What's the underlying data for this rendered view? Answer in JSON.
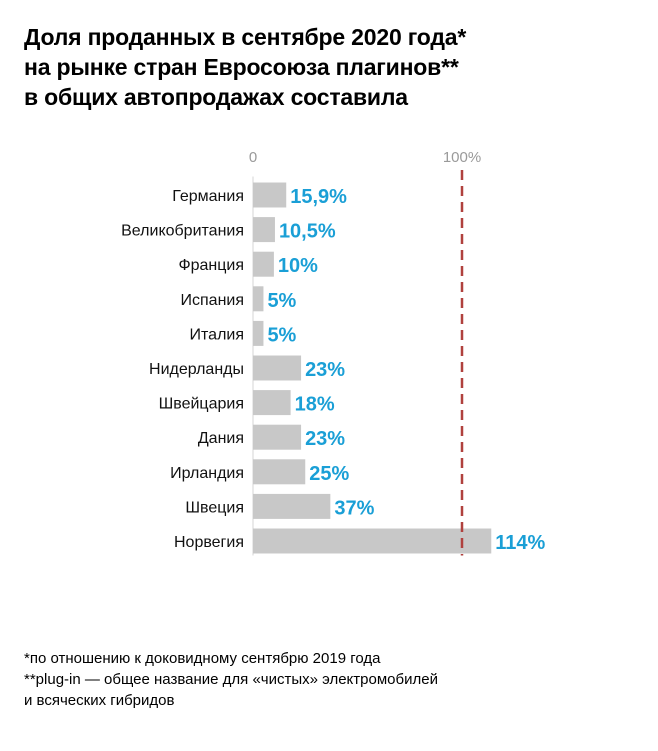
{
  "title_lines": [
    "Доля проданных в сентябре 2020 года*",
    "на рынке стран Евросоюза плагинов**",
    "в общих автопродажах составила"
  ],
  "footnotes": [
    "*по отношению к доковидному сентябрю 2019 года",
    "**plug-in — общее название для «чистых» электромобилей",
    "и всяческих гибридов"
  ],
  "colors": {
    "bar": "#c8c8c8",
    "value_label": "#1a9fd6",
    "reference_line": "#b0413e",
    "tick_label": "#9a9a9a"
  },
  "chart_data": {
    "type": "bar",
    "orientation": "horizontal",
    "categories": [
      "Германия",
      "Великобритания",
      "Франция",
      "Испания",
      "Италия",
      "Нидерланды",
      "Швейцария",
      "Дания",
      "Ирландия",
      "Швеция",
      "Норвегия"
    ],
    "values": [
      15.9,
      10.5,
      10,
      5,
      5,
      23,
      18,
      23,
      25,
      37,
      114
    ],
    "value_labels": [
      "15,9%",
      "10,5%",
      "10%",
      "5%",
      "5%",
      "23%",
      "18%",
      "23%",
      "25%",
      "37%",
      "114%"
    ],
    "x_ticks": [
      {
        "value": 0,
        "label": "0"
      },
      {
        "value": 100,
        "label": "100%"
      }
    ],
    "reference_line": {
      "value": 100,
      "style": "dashed"
    },
    "xlim": [
      0,
      114
    ]
  }
}
